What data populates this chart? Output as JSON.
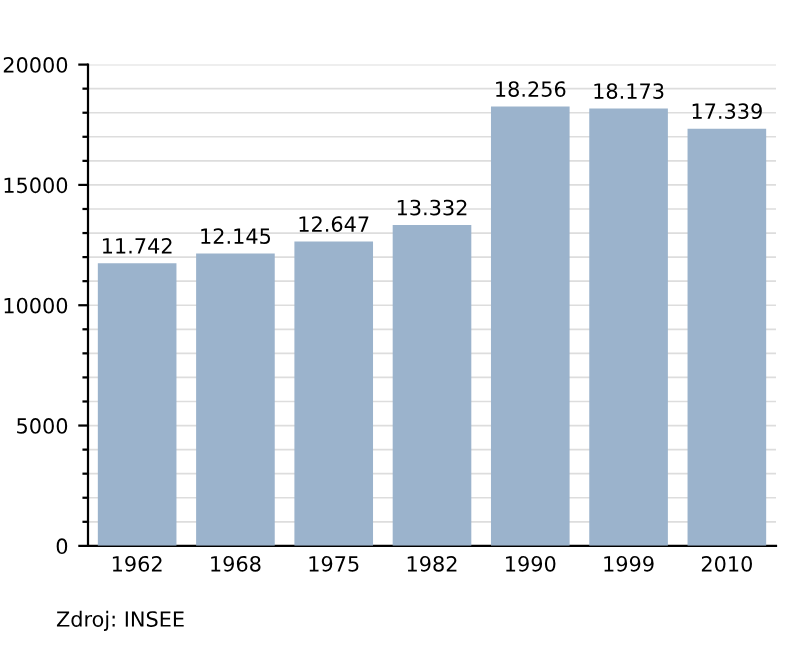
{
  "chart_data": {
    "type": "bar",
    "categories": [
      "1962",
      "1968",
      "1975",
      "1982",
      "1990",
      "1999",
      "2010"
    ],
    "values": [
      11742,
      12145,
      12647,
      13332,
      18256,
      18173,
      17339
    ],
    "value_labels": [
      "11.742",
      "12.145",
      "12.647",
      "13.332",
      "18.256",
      "18.173",
      "17.339"
    ],
    "color": "#9bb3cc",
    "ylim": [
      0,
      20000
    ],
    "yticks": [
      0,
      {
        "value": 1000,
        "label": null
      },
      {
        "value": 2000,
        "label": null
      },
      {
        "value": 3000,
        "label": null
      },
      {
        "value": 4000,
        "label": null
      },
      5000,
      {
        "value": 6000,
        "label": null
      },
      {
        "value": 7000,
        "label": null
      },
      {
        "value": 8000,
        "label": null
      },
      {
        "value": 9000,
        "label": null
      },
      10000,
      {
        "value": 11000,
        "label": null
      },
      {
        "value": 12000,
        "label": null
      },
      {
        "value": 13000,
        "label": null
      },
      {
        "value": 14000,
        "label": null
      },
      15000,
      {
        "value": 16000,
        "label": null
      },
      {
        "value": 17000,
        "label": null
      },
      {
        "value": 18000,
        "label": null
      },
      {
        "value": 19000,
        "label": null
      },
      20000
    ],
    "grid": "y",
    "annotations": [
      "Zdroj: INSEE"
    ]
  }
}
